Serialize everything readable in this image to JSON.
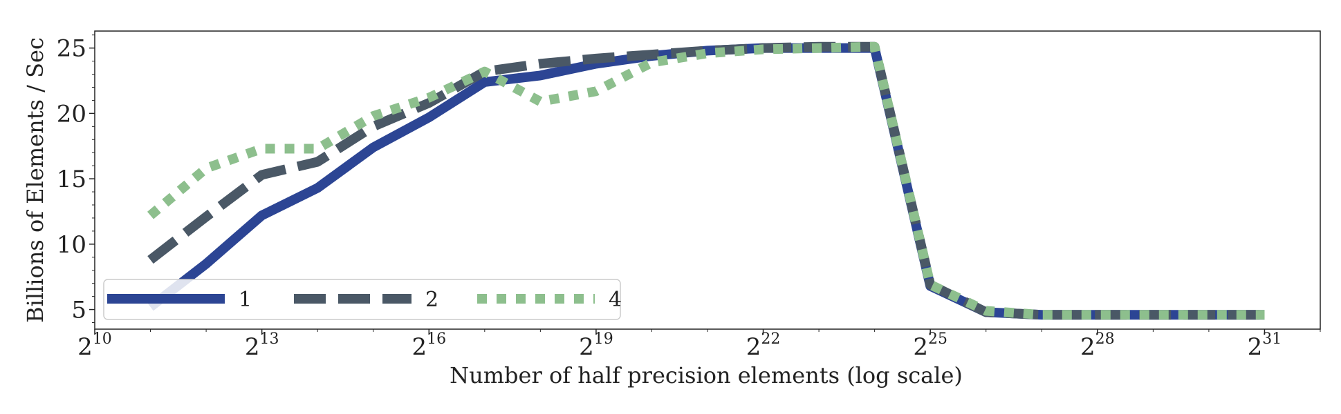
{
  "chart_data": {
    "type": "line",
    "xlabel": "Number of half precision elements (log scale)",
    "ylabel": "Billions of Elements / Sec",
    "xscale": "log2",
    "xlim_exponent": [
      10,
      32
    ],
    "ylim": [
      3.5,
      26.3
    ],
    "x_ticks": [
      {
        "base": "2",
        "exp": "10",
        "value": 10
      },
      {
        "base": "2",
        "exp": "13",
        "value": 13
      },
      {
        "base": "2",
        "exp": "16",
        "value": 16
      },
      {
        "base": "2",
        "exp": "19",
        "value": 19
      },
      {
        "base": "2",
        "exp": "22",
        "value": 22
      },
      {
        "base": "2",
        "exp": "25",
        "value": 25
      },
      {
        "base": "2",
        "exp": "28",
        "value": 28
      },
      {
        "base": "2",
        "exp": "31",
        "value": 31
      }
    ],
    "y_ticks": [
      {
        "label": "5",
        "value": 5
      },
      {
        "label": "10",
        "value": 10
      },
      {
        "label": "15",
        "value": 15
      },
      {
        "label": "20",
        "value": 20
      },
      {
        "label": "25",
        "value": 25
      }
    ],
    "grid": false,
    "legend_position": "lower-left",
    "legend_columns": 3,
    "x_exponents": [
      11,
      12,
      13,
      14,
      15,
      16,
      17,
      18,
      19,
      20,
      21,
      22,
      23,
      24,
      25,
      26,
      27,
      28,
      29,
      30,
      31
    ],
    "series": [
      {
        "name": "1",
        "color": "#2c4594",
        "style": "solid",
        "values": [
          5.2,
          8.5,
          12.2,
          14.3,
          17.4,
          19.7,
          22.4,
          22.9,
          23.8,
          24.4,
          24.8,
          25.0,
          25.0,
          25.0,
          6.8,
          4.8,
          4.6,
          4.6,
          4.6,
          4.6,
          4.6
        ]
      },
      {
        "name": "2",
        "color": "#4a5866",
        "style": "dashed",
        "values": [
          8.8,
          12.1,
          15.3,
          16.3,
          19.0,
          20.8,
          23.2,
          23.8,
          24.2,
          24.5,
          24.8,
          25.0,
          25.1,
          25.1,
          6.9,
          4.8,
          4.6,
          4.6,
          4.6,
          4.6,
          4.6
        ]
      },
      {
        "name": "4",
        "color": "#8dbf8d",
        "style": "dotted",
        "values": [
          12.2,
          15.8,
          17.3,
          17.3,
          19.8,
          21.2,
          23.2,
          20.9,
          21.7,
          23.9,
          24.6,
          24.9,
          25.0,
          25.1,
          6.9,
          4.9,
          4.6,
          4.6,
          4.6,
          4.6,
          4.6
        ]
      }
    ]
  }
}
